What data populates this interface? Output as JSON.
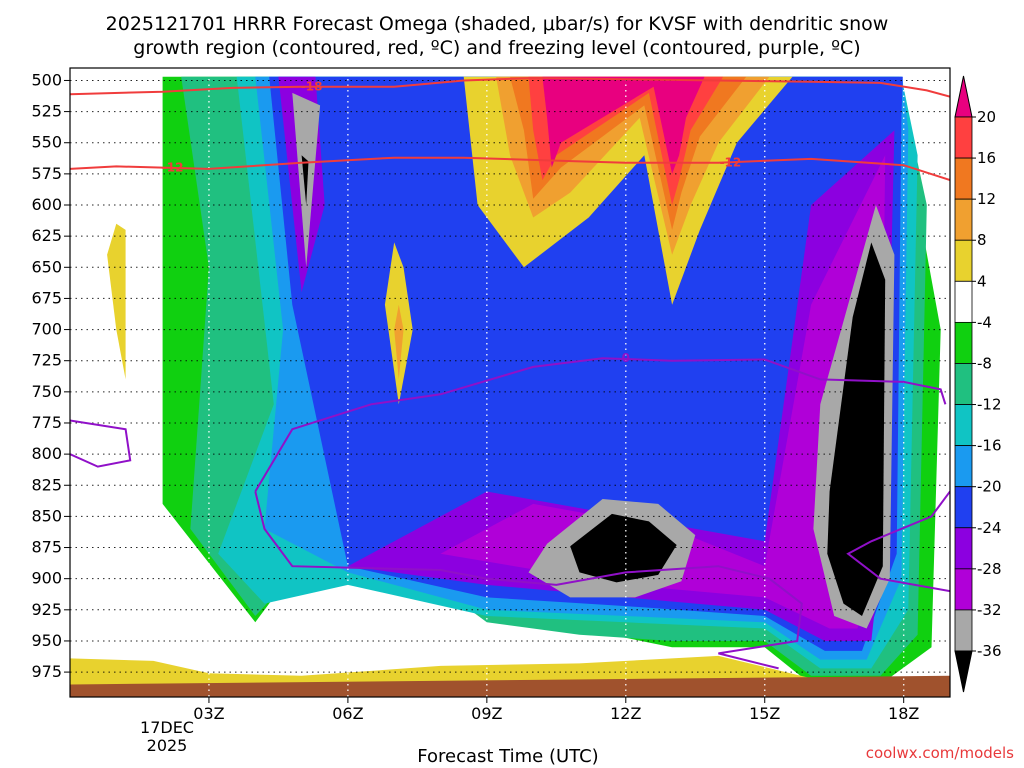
{
  "title_line1": "2025121701 HRRR Forecast Omega (shaded, μbar/s) for KVSF with dendritic snow",
  "title_line2": "growth region (contoured, red, ºC) and freezing level (contoured, purple, ºC)",
  "credit": "coolwx.com/models",
  "chart_data": {
    "type": "contour",
    "title": "2025121701 HRRR Forecast Omega (shaded, μbar/s) for KVSF with dendritic snow growth region (contoured, red, ºC) and freezing level (contoured, purple, ºC)",
    "xlabel": "Forecast Time (UTC)",
    "ylabel": "",
    "x_range_hours": [
      0,
      19
    ],
    "y_range_mb": [
      490,
      995
    ],
    "x_ticks": [
      {
        "hour": 3,
        "label": "03Z"
      },
      {
        "hour": 6,
        "label": "06Z"
      },
      {
        "hour": 9,
        "label": "09Z"
      },
      {
        "hour": 12,
        "label": "12Z"
      },
      {
        "hour": 15,
        "label": "15Z"
      },
      {
        "hour": 18,
        "label": "18Z"
      }
    ],
    "date_label": [
      "17DEC",
      "2025"
    ],
    "y_ticks": [
      500,
      525,
      550,
      575,
      600,
      625,
      650,
      675,
      700,
      725,
      750,
      775,
      800,
      825,
      850,
      875,
      900,
      925,
      950,
      975
    ],
    "grid": "dotted",
    "colorbar": {
      "labels": [
        "20",
        "16",
        "12",
        "8",
        "4",
        "-4",
        "-8",
        "-12",
        "-16",
        "-20",
        "-24",
        "-28",
        "-32",
        "-36"
      ],
      "bins": [
        {
          "color": "#e8007f"
        },
        {
          "color": "#ff4040"
        },
        {
          "color": "#f07820"
        },
        {
          "color": "#f0a030"
        },
        {
          "color": "#e8d22e"
        },
        {
          "color": "#ffffff"
        },
        {
          "color": "#10d010"
        },
        {
          "color": "#20c080"
        },
        {
          "color": "#10c4c4"
        },
        {
          "color": "#1a9af0"
        },
        {
          "color": "#2040f0"
        },
        {
          "color": "#8c00e0"
        },
        {
          "color": "#b000d8"
        },
        {
          "color": "#a8a8a8"
        },
        {
          "color": "#000000"
        }
      ]
    },
    "omega_regions": [
      {
        "color": "#10d010",
        "points": [
          [
            2,
            497
          ],
          [
            2,
            840
          ],
          [
            4,
            935
          ],
          [
            5.5,
            860
          ],
          [
            7,
            870
          ],
          [
            9,
            930
          ],
          [
            11,
            940
          ],
          [
            13,
            955
          ],
          [
            15,
            955
          ],
          [
            16,
            985
          ],
          [
            17.5,
            985
          ],
          [
            18.6,
            955
          ],
          [
            18.8,
            700
          ],
          [
            17.8,
            497
          ]
        ]
      },
      {
        "color": "#20c080",
        "points": [
          [
            2.4,
            497
          ],
          [
            3,
            650
          ],
          [
            2.6,
            860
          ],
          [
            4,
            930
          ],
          [
            5.5,
            870
          ],
          [
            7,
            880
          ],
          [
            9,
            935
          ],
          [
            11,
            945
          ],
          [
            13,
            950
          ],
          [
            15,
            950
          ],
          [
            16,
            978
          ],
          [
            17.5,
            978
          ],
          [
            18.3,
            945
          ],
          [
            18.5,
            600
          ],
          [
            17.9,
            497
          ]
        ]
      },
      {
        "color": "#10c4c4",
        "points": [
          [
            3.6,
            497
          ],
          [
            4.4,
            760
          ],
          [
            3.2,
            880
          ],
          [
            4.2,
            920
          ],
          [
            6,
            905
          ],
          [
            9,
            930
          ],
          [
            12,
            935
          ],
          [
            15,
            940
          ],
          [
            16.2,
            972
          ],
          [
            17.3,
            972
          ],
          [
            18.1,
            925
          ],
          [
            18.3,
            560
          ],
          [
            17.95,
            497
          ]
        ]
      },
      {
        "color": "#1a9af0",
        "points": [
          [
            4,
            497
          ],
          [
            4.6,
            700
          ],
          [
            4.2,
            860
          ],
          [
            6,
            895
          ],
          [
            9,
            925
          ],
          [
            12,
            930
          ],
          [
            15,
            935
          ],
          [
            16.2,
            965
          ],
          [
            17.2,
            965
          ],
          [
            17.95,
            900
          ],
          [
            18.1,
            540
          ],
          [
            17.97,
            497
          ]
        ]
      },
      {
        "color": "#2040f0",
        "points": [
          [
            4.3,
            497
          ],
          [
            4.8,
            680
          ],
          [
            6,
            890
          ],
          [
            9,
            915
          ],
          [
            12,
            922
          ],
          [
            15,
            930
          ],
          [
            16.3,
            958
          ],
          [
            17.1,
            958
          ],
          [
            17.85,
            880
          ],
          [
            17.95,
            530
          ],
          [
            17.98,
            497
          ]
        ]
      },
      {
        "color": "#8c00e0",
        "points": [
          [
            4.5,
            497
          ],
          [
            5,
            670
          ],
          [
            5.5,
            600
          ],
          [
            5.3,
            497
          ]
        ]
      },
      {
        "color": "#8c00e0",
        "points": [
          [
            6,
            890
          ],
          [
            9,
            830
          ],
          [
            12,
            850
          ],
          [
            15,
            870
          ],
          [
            16,
            600
          ],
          [
            17.8,
            540
          ],
          [
            17.6,
            850
          ],
          [
            17.3,
            950
          ],
          [
            16.3,
            950
          ],
          [
            15,
            925
          ],
          [
            12,
            915
          ],
          [
            9,
            905
          ]
        ]
      },
      {
        "color": "#b000d8",
        "points": [
          [
            8,
            880
          ],
          [
            10,
            840
          ],
          [
            13,
            860
          ],
          [
            15,
            890
          ],
          [
            16,
            680
          ],
          [
            17.6,
            560
          ],
          [
            17.5,
            880
          ],
          [
            17,
            940
          ],
          [
            16.4,
            940
          ],
          [
            15,
            915
          ],
          [
            12,
            905
          ]
        ]
      },
      {
        "color": "#a8a8a8",
        "points": [
          [
            4.8,
            510
          ],
          [
            5.1,
            650
          ],
          [
            5.4,
            520
          ]
        ]
      },
      {
        "color": "#a8a8a8",
        "points": [
          [
            9.9,
            895
          ],
          [
            10.3,
            872
          ],
          [
            11.5,
            836
          ],
          [
            12.7,
            840
          ],
          [
            13.5,
            865
          ],
          [
            13.2,
            902
          ],
          [
            12.2,
            915
          ],
          [
            10.8,
            915
          ]
        ]
      },
      {
        "color": "#a8a8a8",
        "points": [
          [
            16.2,
            760
          ],
          [
            16.8,
            680
          ],
          [
            17.4,
            600
          ],
          [
            17.8,
            640
          ],
          [
            17.7,
            900
          ],
          [
            17.2,
            940
          ],
          [
            16.5,
            930
          ],
          [
            16.05,
            860
          ]
        ]
      },
      {
        "color": "#000000",
        "points": [
          [
            5.0,
            560
          ],
          [
            5.1,
            600
          ],
          [
            5.15,
            565
          ]
        ]
      },
      {
        "color": "#000000",
        "points": [
          [
            10.8,
            874
          ],
          [
            11.7,
            848
          ],
          [
            12.5,
            854
          ],
          [
            13.1,
            873
          ],
          [
            12.7,
            897
          ],
          [
            11.8,
            903
          ],
          [
            11.0,
            895
          ]
        ]
      },
      {
        "color": "#000000",
        "points": [
          [
            16.4,
            830
          ],
          [
            16.9,
            690
          ],
          [
            17.3,
            630
          ],
          [
            17.6,
            660
          ],
          [
            17.55,
            890
          ],
          [
            17.1,
            930
          ],
          [
            16.7,
            920
          ],
          [
            16.35,
            880
          ]
        ]
      },
      {
        "color": "#e8d22e",
        "points": [
          [
            8.5,
            497
          ],
          [
            8.8,
            600
          ],
          [
            9.8,
            650
          ],
          [
            11.2,
            610
          ],
          [
            12.4,
            560
          ],
          [
            13,
            680
          ],
          [
            13.6,
            620
          ],
          [
            14.4,
            550
          ],
          [
            15.6,
            497
          ]
        ]
      },
      {
        "color": "#f0a030",
        "points": [
          [
            9.2,
            497
          ],
          [
            9.5,
            560
          ],
          [
            10,
            610
          ],
          [
            10.8,
            590
          ],
          [
            12.3,
            530
          ],
          [
            13,
            640
          ],
          [
            13.4,
            600
          ],
          [
            14,
            550
          ],
          [
            15.1,
            497
          ]
        ]
      },
      {
        "color": "#f07820",
        "points": [
          [
            9.5,
            497
          ],
          [
            9.8,
            540
          ],
          [
            10,
            595
          ],
          [
            10.6,
            570
          ],
          [
            12.4,
            520
          ],
          [
            13,
            620
          ],
          [
            13.2,
            590
          ],
          [
            13.6,
            545
          ],
          [
            14.6,
            497
          ]
        ]
      },
      {
        "color": "#ff4040",
        "points": [
          [
            9.9,
            497
          ],
          [
            10,
            540
          ],
          [
            10.2,
            580
          ],
          [
            10.5,
            560
          ],
          [
            12.5,
            510
          ],
          [
            13,
            600
          ],
          [
            13.15,
            580
          ],
          [
            13.4,
            540
          ],
          [
            14.1,
            497
          ]
        ]
      },
      {
        "color": "#e8007f",
        "points": [
          [
            10.2,
            497
          ],
          [
            10.3,
            530
          ],
          [
            10.4,
            570
          ],
          [
            10.6,
            550
          ],
          [
            12.6,
            505
          ],
          [
            13,
            575
          ],
          [
            13.15,
            560
          ],
          [
            13.3,
            530
          ],
          [
            13.7,
            497
          ]
        ]
      },
      {
        "color": "#e8d22e",
        "points": [
          [
            0.8,
            640
          ],
          [
            1.0,
            700
          ],
          [
            1.2,
            740
          ],
          [
            1.2,
            620
          ],
          [
            1.0,
            615
          ]
        ]
      },
      {
        "color": "#e8d22e",
        "points": [
          [
            6.8,
            680
          ],
          [
            7.1,
            760
          ],
          [
            7.4,
            700
          ],
          [
            7.2,
            650
          ],
          [
            7.0,
            630
          ]
        ]
      },
      {
        "color": "#f0a030",
        "points": [
          [
            7.0,
            700
          ],
          [
            7.1,
            740
          ],
          [
            7.2,
            700
          ],
          [
            7.1,
            680
          ]
        ]
      },
      {
        "color": "#e8d22e",
        "points": [
          [
            0,
            964
          ],
          [
            1.8,
            966
          ],
          [
            3,
            976
          ],
          [
            5,
            978
          ],
          [
            8,
            970
          ],
          [
            11,
            968
          ],
          [
            14,
            962
          ],
          [
            16,
            980
          ],
          [
            19,
            980
          ],
          [
            19,
            995
          ],
          [
            0,
            995
          ]
        ]
      },
      {
        "color": "#a0522d",
        "points": [
          [
            0,
            985
          ],
          [
            19,
            978
          ],
          [
            19,
            995
          ],
          [
            0,
            995
          ]
        ]
      }
    ],
    "dgz_contours": [
      {
        "label": "-18",
        "points": [
          [
            0,
            511
          ],
          [
            2,
            509
          ],
          [
            3.5,
            506
          ],
          [
            5,
            505
          ],
          [
            7,
            505
          ],
          [
            8.5,
            500
          ],
          [
            10,
            498
          ],
          [
            12,
            499
          ],
          [
            14,
            500
          ],
          [
            16,
            501
          ],
          [
            17.5,
            502
          ],
          [
            18.5,
            508
          ],
          [
            19,
            513
          ]
        ]
      },
      {
        "label": "-12",
        "points": [
          [
            0,
            571
          ],
          [
            1,
            569
          ],
          [
            2,
            570
          ],
          [
            3,
            571
          ],
          [
            5,
            566
          ],
          [
            7,
            562
          ],
          [
            8.5,
            562
          ],
          [
            11,
            565
          ],
          [
            12,
            566
          ],
          [
            14,
            566
          ],
          [
            16,
            563
          ],
          [
            18,
            568
          ],
          [
            19,
            580
          ]
        ]
      }
    ],
    "freezing_level": {
      "label": "0",
      "points": [
        [
          0,
          773
        ],
        [
          1.2,
          780
        ],
        [
          1.3,
          805
        ],
        [
          0.6,
          810
        ],
        [
          0,
          800
        ]
      ],
      "extra": [
        [
          [
            4,
            830
          ],
          [
            4.8,
            780
          ],
          [
            6.5,
            760
          ],
          [
            8,
            752
          ],
          [
            10,
            730
          ],
          [
            11.5,
            723
          ],
          [
            13,
            725
          ],
          [
            15,
            724
          ],
          [
            16.2,
            740
          ],
          [
            18,
            742
          ],
          [
            18.8,
            748
          ],
          [
            18.9,
            760
          ]
        ],
        [
          [
            4,
            830
          ],
          [
            4.2,
            860
          ],
          [
            4.8,
            890
          ],
          [
            8,
            893
          ],
          [
            9,
            900
          ],
          [
            10.5,
            905
          ],
          [
            12,
            895
          ],
          [
            14,
            890
          ],
          [
            15.1,
            900
          ],
          [
            15.8,
            920
          ],
          [
            15.7,
            950
          ],
          [
            14,
            960
          ],
          [
            15.3,
            972
          ]
        ],
        [
          [
            19,
            830
          ],
          [
            18.6,
            850
          ],
          [
            17.3,
            870
          ],
          [
            16.8,
            880
          ],
          [
            17.5,
            900
          ],
          [
            19,
            910
          ]
        ]
      ]
    },
    "tooltip_label_pos": "top"
  }
}
